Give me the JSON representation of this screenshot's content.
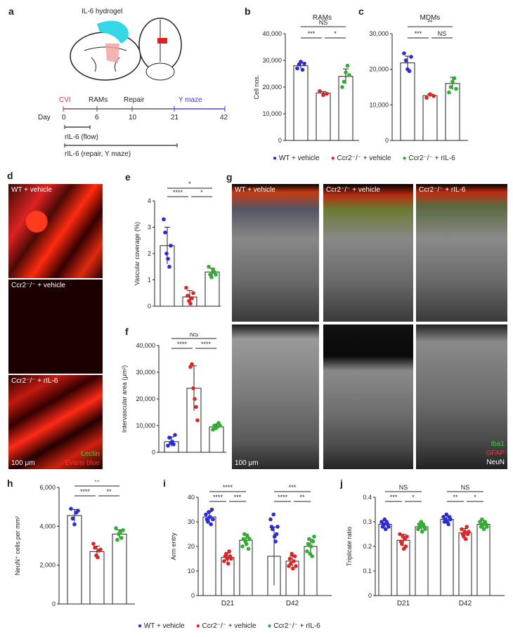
{
  "panel_labels": {
    "a": "a",
    "b": "b",
    "c": "c",
    "d": "d",
    "e": "e",
    "f": "f",
    "g": "g",
    "h": "h",
    "i": "i",
    "j": "j"
  },
  "colors": {
    "wt": "#2a2ad8",
    "ko": "#e02424",
    "il6": "#2fae2f",
    "cvi": "#e03030",
    "ymaze": "#3a3ae0"
  },
  "schematic": {
    "hydrogel_label": "IL-6 hydrogel",
    "timeline_labels": [
      "CVI",
      "RAMs",
      "Repair",
      "Y maze"
    ],
    "day_label": "Day",
    "days": [
      "0",
      "6",
      "10",
      "21",
      "42"
    ],
    "bar1_label": "rIL-6 (flow)",
    "bar2_label": "rIL-6 (repair, Y maze)"
  },
  "legend_top": [
    "WT + vehicle",
    "Ccr2⁻/⁻ + vehicle",
    "Ccr2⁻/⁻ + rIL-6"
  ],
  "legend_bottom": [
    "WT + vehicle",
    "Ccr2⁻/⁻ + vehicle",
    "Ccr2⁻/⁻ + rIL-6"
  ],
  "micro_d": {
    "captions": [
      "WT + vehicle",
      "Ccr2⁻/⁻ + vehicle",
      "Ccr2⁻/⁻ + rIL-6"
    ],
    "scale": "100 μm",
    "stain1": "Lectin",
    "stain2": "Evans blue"
  },
  "micro_g": {
    "captions": [
      "WT + vehicle",
      "Ccr2⁻/⁻ + vehicle",
      "Ccr2⁻/⁻ + rIL-6"
    ],
    "scale": "100 μm",
    "stains": [
      "Iba1",
      "GFAP",
      "NeuN"
    ]
  },
  "chart_data": [
    {
      "id": "b",
      "type": "bar",
      "title": "RAMs",
      "ylabel": "Cell nos.",
      "ylim": [
        0,
        40000
      ],
      "yticks": [
        "0",
        "10,000",
        "20,000",
        "30,000",
        "40,000"
      ],
      "categories": [
        "WT + vehicle",
        "Ccr2⁻/⁻ + vehicle",
        "Ccr2⁻/⁻ + rIL-6"
      ],
      "values": [
        28000,
        17800,
        24000
      ],
      "points": [
        [
          27000,
          28500,
          29500,
          26500,
          28800
        ],
        [
          18500,
          17000,
          17500
        ],
        [
          20000,
          22000,
          25500,
          28000,
          24500
        ]
      ],
      "sig": [
        {
          "label": "NS"
        },
        {
          "label": "***"
        },
        {
          "label": "*"
        }
      ]
    },
    {
      "id": "c",
      "type": "bar",
      "title": "MDMs",
      "ylabel": "",
      "ylim": [
        0,
        30000
      ],
      "yticks": [
        "0",
        "10,000",
        "20,000",
        "30,000"
      ],
      "categories": [
        "WT + vehicle",
        "Ccr2⁻/⁻ + vehicle",
        "Ccr2⁻/⁻ + rIL-6"
      ],
      "values": [
        21800,
        12600,
        16000
      ],
      "points": [
        [
          24500,
          22500,
          20000,
          19500,
          23500
        ],
        [
          12000,
          13000,
          12500
        ],
        [
          13500,
          15000,
          16500,
          17500,
          14500
        ]
      ],
      "sig": [
        {
          "label": "**"
        },
        {
          "label": "***"
        },
        {
          "label": "NS"
        }
      ]
    },
    {
      "id": "e",
      "type": "bar",
      "title": "",
      "ylabel": "Vascular coverage (%)",
      "ylim": [
        0,
        4
      ],
      "yticks": [
        "0",
        "1",
        "2",
        "3",
        "4"
      ],
      "categories": [
        "WT + vehicle",
        "Ccr2⁻/⁻ + vehicle",
        "Ccr2⁻/⁻ + rIL-6"
      ],
      "values": [
        2.3,
        0.35,
        1.3
      ],
      "points": [
        [
          3.3,
          2.8,
          2.0,
          1.8,
          1.5,
          2.3
        ],
        [
          0.7,
          0.4,
          0.2,
          0.1,
          0.3,
          0.5
        ],
        [
          1.5,
          1.2,
          1.1,
          1.4,
          1.3,
          1.2
        ]
      ],
      "sig": [
        {
          "label": "*"
        },
        {
          "label": "****"
        },
        {
          "label": "*"
        }
      ]
    },
    {
      "id": "f",
      "type": "bar",
      "title": "",
      "ylabel": "Intervascular area (μm²)",
      "ylim": [
        0,
        40000
      ],
      "yticks": [
        "0",
        "10,000",
        "20,000",
        "30,000",
        "40,000"
      ],
      "categories": [
        "WT + vehicle",
        "Ccr2⁻/⁻ + vehicle",
        "Ccr2⁻/⁻ + rIL-6"
      ],
      "values": [
        4000,
        24000,
        9500
      ],
      "points": [
        [
          2500,
          5500,
          3500,
          4000,
          3000,
          6500
        ],
        [
          32000,
          33000,
          24000,
          20000,
          17000,
          12000
        ],
        [
          8500,
          10000,
          9000,
          9500,
          11000,
          10000
        ]
      ],
      "sig": [
        {
          "label": "NS"
        },
        {
          "label": "****"
        },
        {
          "label": "****"
        }
      ]
    },
    {
      "id": "h",
      "type": "bar",
      "title": "",
      "ylabel": "NeuN⁺ cells per mm²",
      "ylim": [
        0,
        6000
      ],
      "yticks": [
        "0",
        "2,000",
        "4,000",
        "6,000"
      ],
      "categories": [
        "WT + vehicle",
        "Ccr2⁻/⁻ + vehicle",
        "Ccr2⁻/⁻ + rIL-6"
      ],
      "values": [
        4550,
        2700,
        3600
      ],
      "points": [
        [
          4900,
          4400,
          4100,
          4700,
          4800
        ],
        [
          3100,
          2900,
          2500,
          2400,
          2750,
          2800
        ],
        [
          3900,
          3300,
          3600,
          3700,
          3400,
          3800
        ]
      ],
      "sig": [
        {
          "label": "**"
        },
        {
          "label": "****"
        },
        {
          "label": "**"
        }
      ]
    },
    {
      "id": "i",
      "type": "bar",
      "title": "",
      "ylabel": "Arm entry",
      "ylim": [
        0,
        40
      ],
      "yticks": [
        "0",
        "10",
        "20",
        "30",
        "40"
      ],
      "categories": [
        "D21",
        "D42"
      ],
      "series": [
        {
          "values": [
            32,
            16
          ]
        },
        {
          "values": [
            15.5,
            14
          ]
        },
        {
          "values": [
            22.5,
            20
          ]
        }
      ],
      "points": [
        [
          [
            33,
            31,
            30,
            34,
            32,
            29,
            35,
            31
          ],
          [
            31,
            28,
            27,
            33,
            24,
            22,
            25,
            28
          ]
        ],
        [
          [
            14,
            16,
            17,
            15,
            13,
            18,
            16,
            15
          ],
          [
            12,
            15,
            13,
            17,
            11,
            14,
            16,
            12
          ]
        ],
        [
          [
            20,
            23,
            25,
            22,
            21,
            24,
            19,
            23
          ],
          [
            18,
            21,
            23,
            17,
            20,
            16,
            22,
            24
          ]
        ]
      ],
      "sig_groups": [
        [
          "****",
          "****",
          "***"
        ],
        [
          "***",
          "****",
          "**"
        ]
      ]
    },
    {
      "id": "j",
      "type": "bar",
      "title": "",
      "ylabel": "Triplicate ratio",
      "ylim": [
        0,
        0.4
      ],
      "yticks": [
        "0",
        "0.1",
        "0.2",
        "0.3",
        "0.4"
      ],
      "categories": [
        "D21",
        "D42"
      ],
      "series": [
        {
          "values": [
            0.29,
            0.31
          ]
        },
        {
          "values": [
            0.225,
            0.255
          ]
        },
        {
          "values": [
            0.28,
            0.29
          ]
        }
      ],
      "points": [
        [
          [
            0.3,
            0.28,
            0.29,
            0.31,
            0.27,
            0.3,
            0.29,
            0.28
          ],
          [
            0.32,
            0.3,
            0.31,
            0.33,
            0.3,
            0.29,
            0.32,
            0.31
          ]
        ],
        [
          [
            0.25,
            0.22,
            0.21,
            0.24,
            0.19,
            0.23,
            0.2,
            0.24
          ],
          [
            0.27,
            0.25,
            0.24,
            0.26,
            0.23,
            0.28,
            0.25,
            0.26
          ]
        ],
        [
          [
            0.27,
            0.29,
            0.28,
            0.3,
            0.26,
            0.29,
            0.28,
            0.27
          ],
          [
            0.3,
            0.28,
            0.31,
            0.29,
            0.27,
            0.3,
            0.29,
            0.28
          ]
        ]
      ],
      "sig_groups": [
        [
          "NS",
          "***",
          "*"
        ],
        [
          "NS",
          "**",
          "*"
        ]
      ]
    }
  ]
}
